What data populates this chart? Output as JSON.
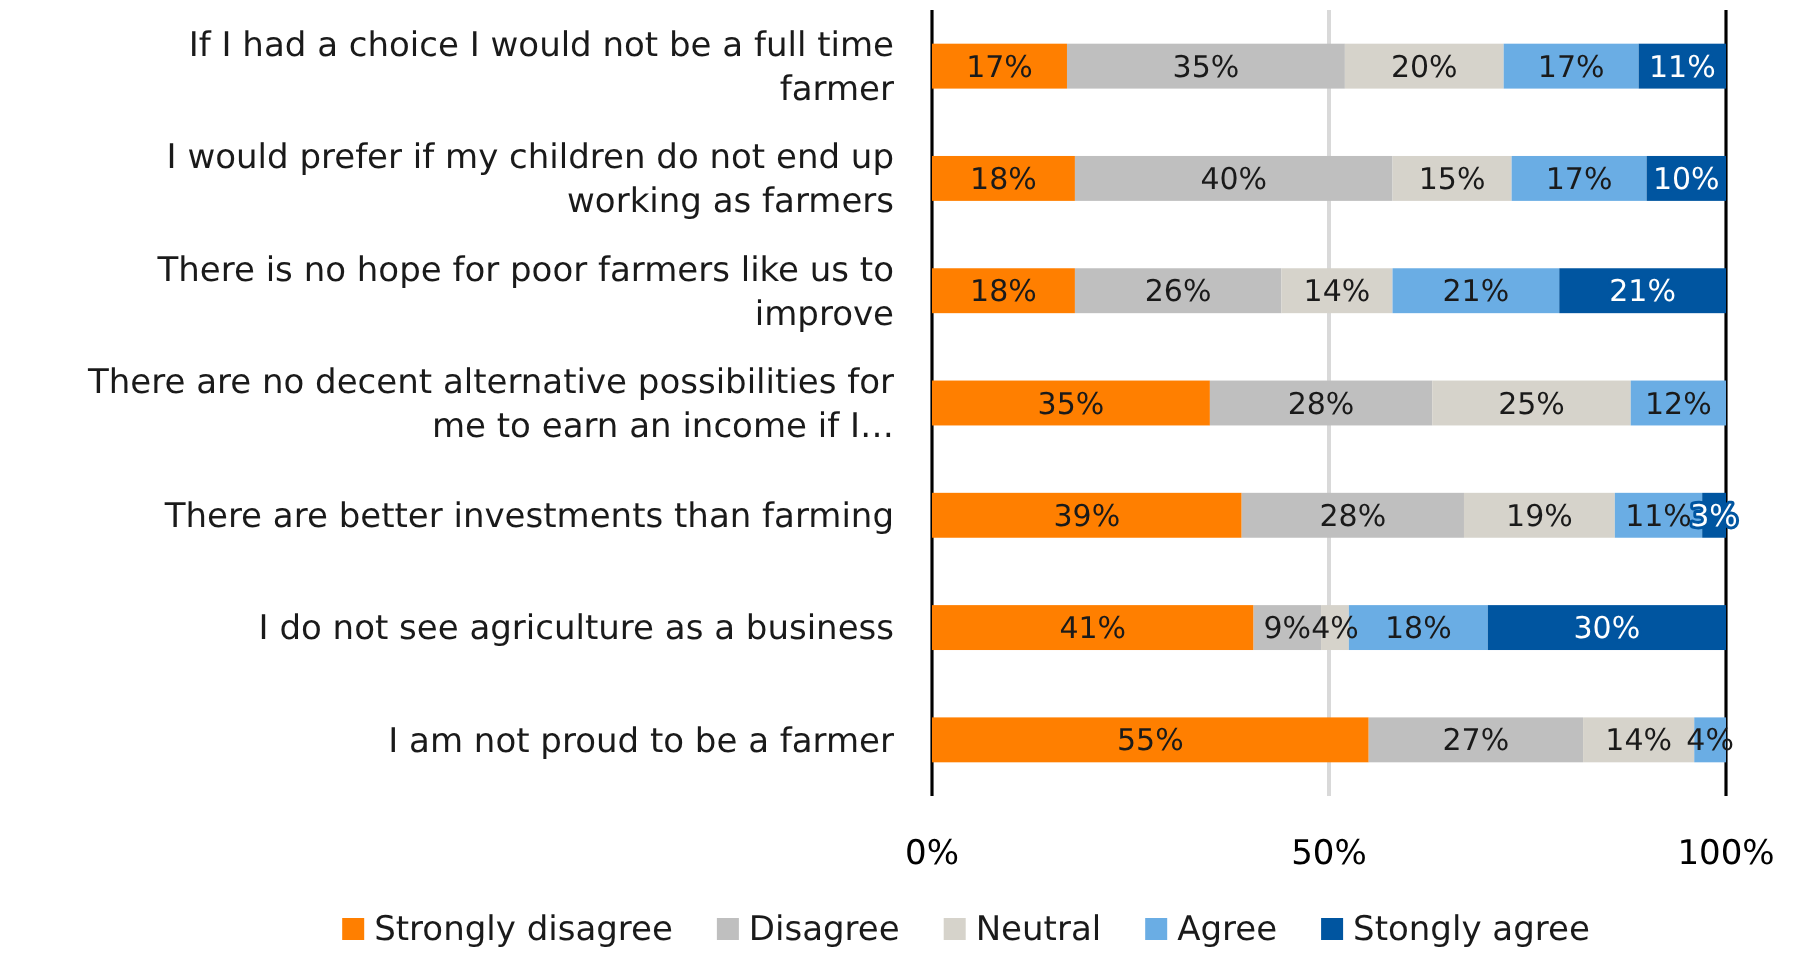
{
  "chart_data": {
    "type": "bar",
    "orientation": "horizontal",
    "stacked": true,
    "categories": [
      "If I had a choice I would not be a full time farmer",
      "I would prefer if my children do not end up working as farmers",
      "There is no hope for poor farmers like us to improve",
      "There are no decent alternative possibilities for me to earn an income if I…",
      "There are better investments than farming",
      "I do not see agriculture as a business",
      "I am not proud to be a farmer"
    ],
    "series": [
      {
        "name": "Strongly disagree",
        "color": "#ff7f00",
        "values": [
          17,
          18,
          18,
          35,
          39,
          40.5,
          55
        ],
        "value_labels": [
          "17%",
          "18%",
          "18%",
          "35%",
          "39%",
          "41%",
          "55%"
        ]
      },
      {
        "name": "Disagree",
        "color": "#bfbfbf",
        "values": [
          35,
          40,
          26,
          28,
          28,
          8.5,
          27
        ],
        "value_labels": [
          "35%",
          "40%",
          "26%",
          "28%",
          "28%",
          "9%",
          "27%"
        ]
      },
      {
        "name": "Neutral",
        "color": "#d6d3cb",
        "values": [
          20,
          15,
          14,
          25,
          19,
          3.5,
          14
        ],
        "value_labels": [
          "20%",
          "15%",
          "14%",
          "25%",
          "19%",
          "4%",
          "14%"
        ]
      },
      {
        "name": "Agree",
        "color": "#6aade4",
        "values": [
          17,
          17,
          21,
          12,
          11,
          17.5,
          4
        ],
        "value_labels": [
          "17%",
          "17%",
          "21%",
          "12%",
          "11%",
          "18%",
          "4%"
        ]
      },
      {
        "name": "Stongly agree",
        "color": "#0055a0",
        "values": [
          11,
          10,
          21,
          null,
          3,
          30,
          null
        ],
        "value_labels": [
          "11%",
          "10%",
          "21%",
          null,
          "3%",
          "30%",
          null
        ]
      }
    ],
    "xlim": [
      0,
      100
    ],
    "xticks": [
      {
        "value": 0,
        "label": "0%"
      },
      {
        "value": 50,
        "label": "50%"
      },
      {
        "value": 100,
        "label": "100%"
      }
    ],
    "grid": "x",
    "legend": "bottom"
  }
}
